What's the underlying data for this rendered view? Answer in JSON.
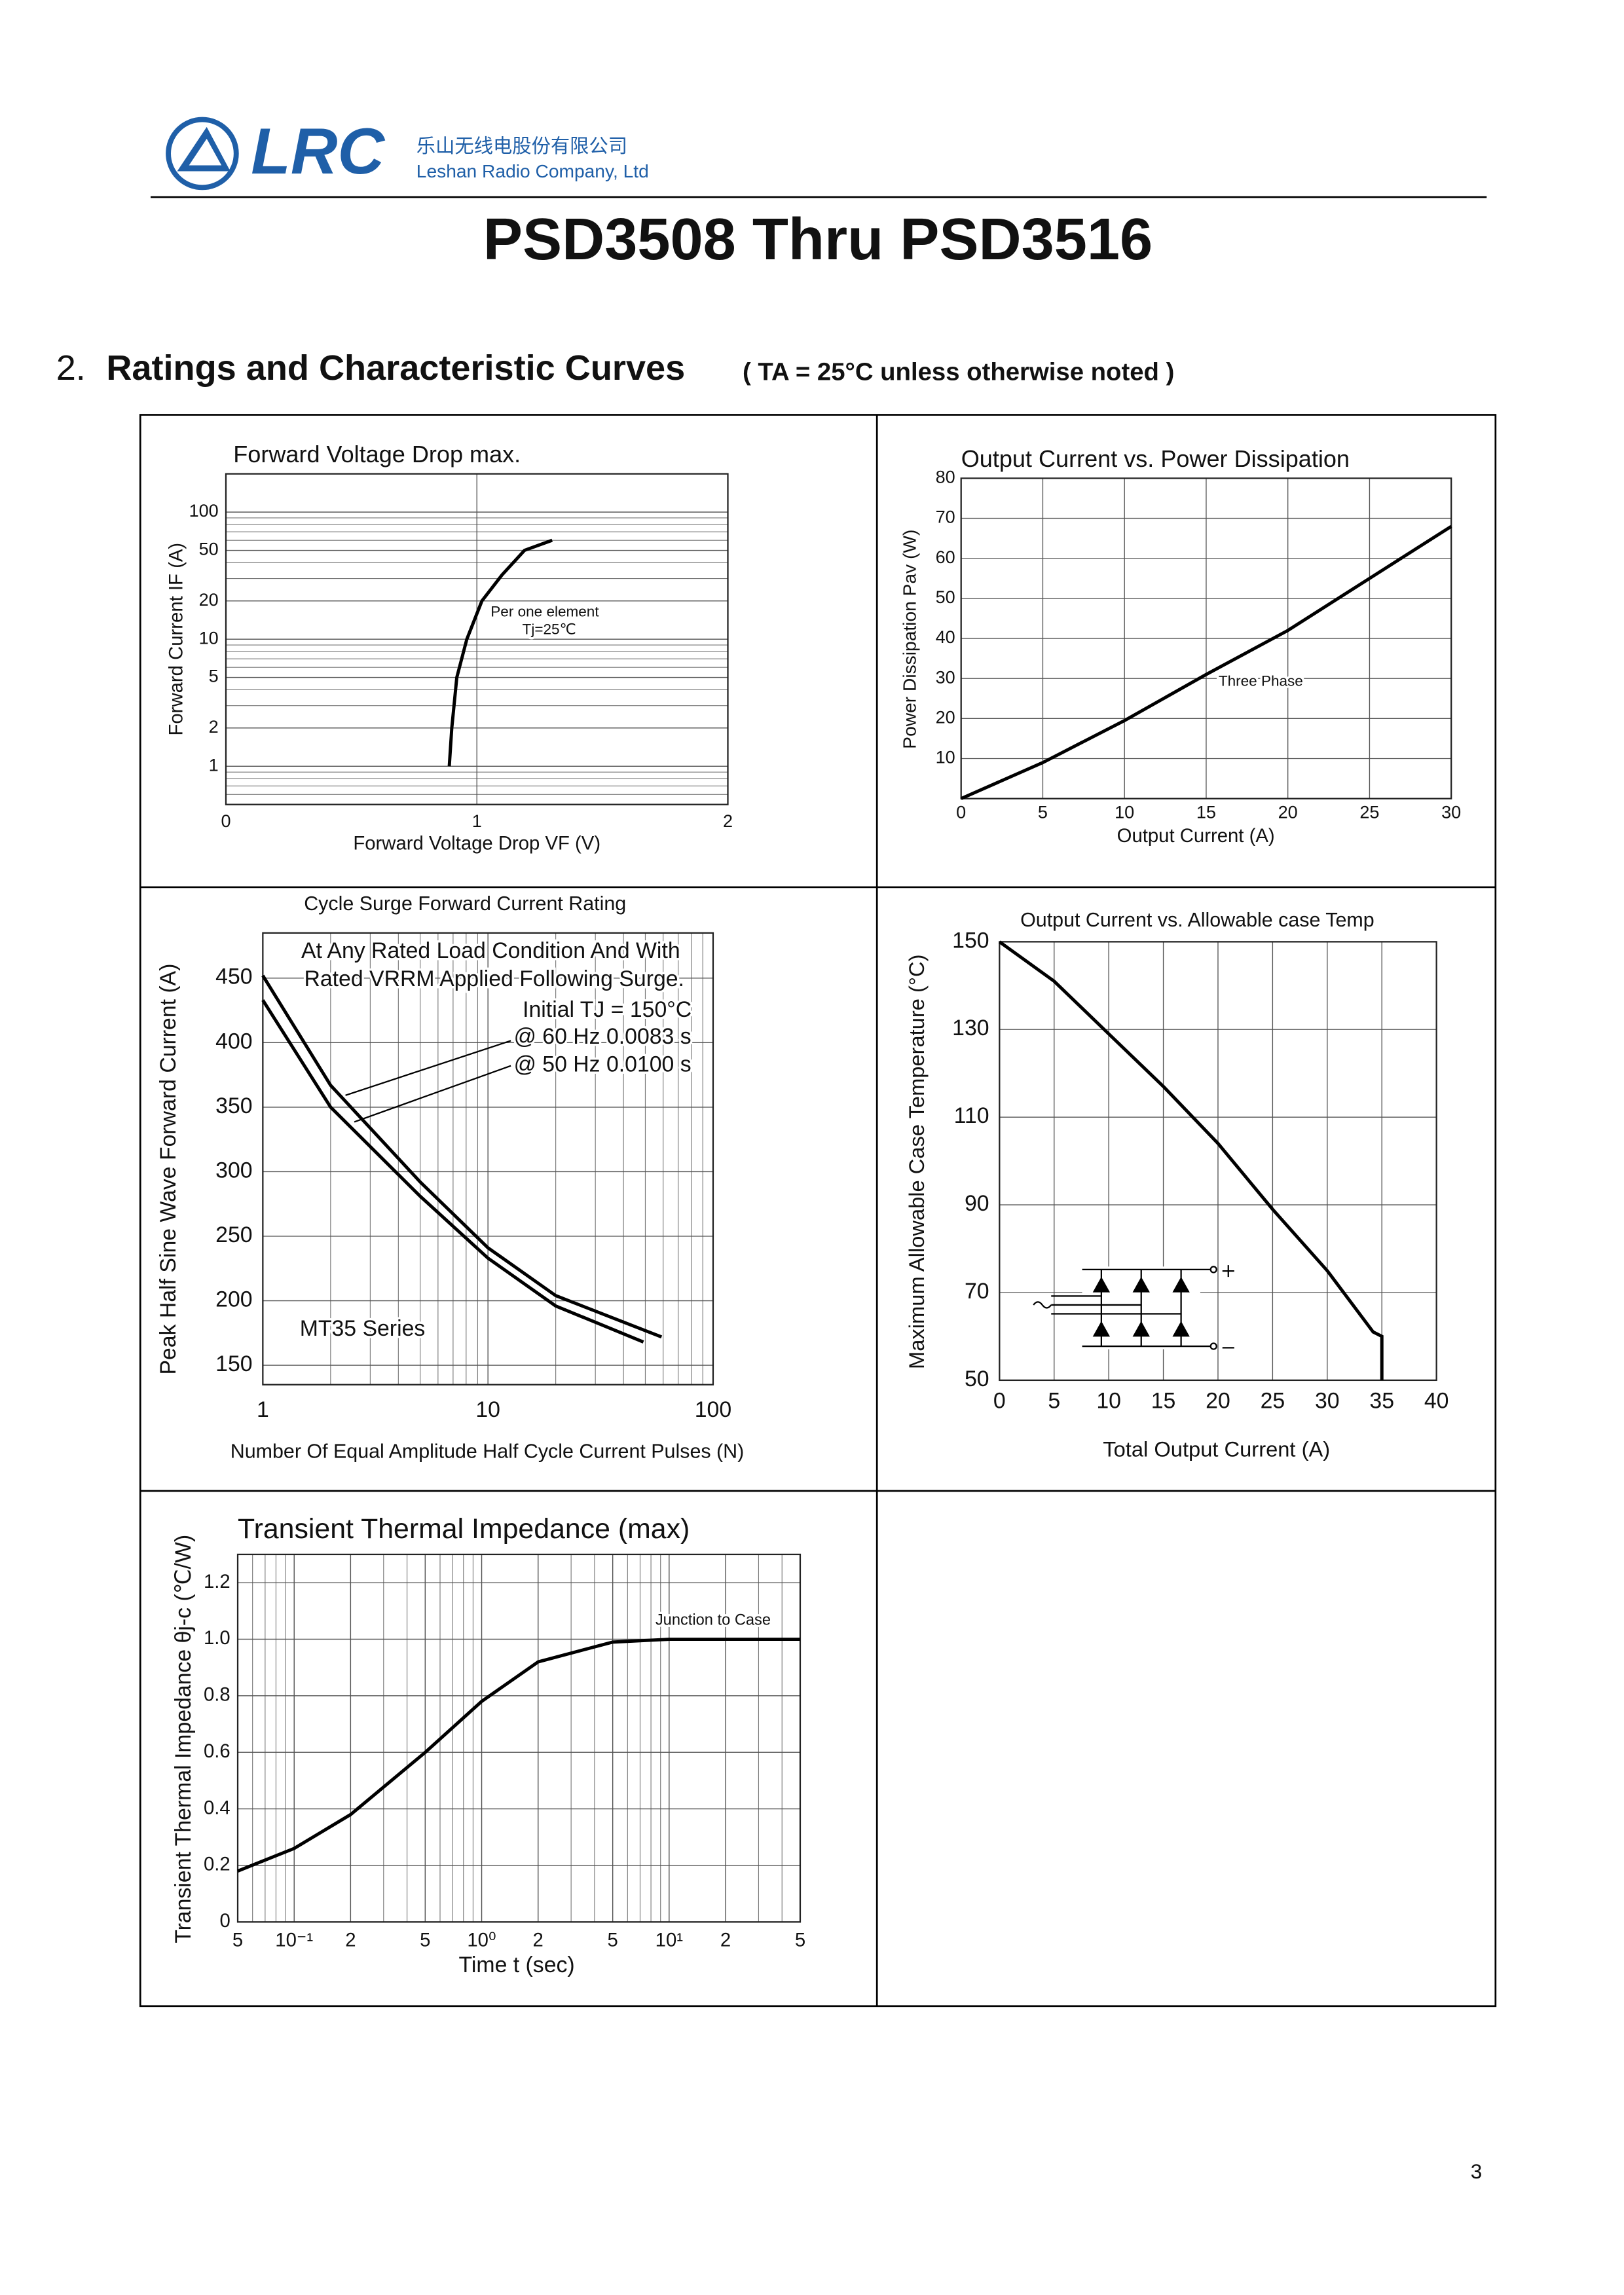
{
  "header": {
    "logo_text": "LRC",
    "company_cn": "乐山无线电股份有限公司",
    "company_en": "Leshan Radio Company, Ltd"
  },
  "title": "PSD3508 Thru PSD3516",
  "section": {
    "number": "2.",
    "heading": "Ratings and Characteristic Curves",
    "note": "( TA = 25°C unless otherwise noted )"
  },
  "page_number": "3",
  "chart_data": [
    {
      "type": "line",
      "title": "Forward Voltage Drop max.",
      "x_label": "Forward Voltage Drop VF (V)",
      "y_label": "Forward Current  IF (A)",
      "xlim": [
        0,
        2
      ],
      "xticks": [
        0,
        1,
        2
      ],
      "ylim": [
        0.5,
        200
      ],
      "yticks": [
        1,
        2,
        5,
        10,
        20,
        50,
        100
      ],
      "yscale": "log",
      "grid": true,
      "annotations": [
        "Per one element",
        "Tj=25℃"
      ],
      "series": [
        {
          "color": "#000000",
          "x": [
            0.89,
            0.9,
            0.92,
            0.96,
            1.02,
            1.1,
            1.19,
            1.3
          ],
          "values": [
            1,
            2,
            5,
            10,
            20,
            32,
            50,
            60
          ]
        }
      ]
    },
    {
      "type": "line",
      "title": "Output Current vs. Power Dissipation",
      "x_label": "Output Current (A)",
      "y_label": "Power Dissipation Pav (W)",
      "xlim": [
        0,
        30
      ],
      "xticks": [
        0,
        5,
        10,
        15,
        20,
        25,
        30
      ],
      "ylim": [
        0,
        80
      ],
      "yticks": [
        10,
        20,
        30,
        40,
        50,
        60,
        70,
        80
      ],
      "grid": true,
      "annotations": [
        "Three Phase"
      ],
      "series": [
        {
          "color": "#000000",
          "x": [
            0,
            5,
            10,
            15,
            20,
            25,
            30
          ],
          "values": [
            0,
            9,
            19.5,
            31,
            42,
            55,
            68
          ]
        }
      ]
    },
    {
      "type": "line",
      "title": "Cycle Surge Forward Current Rating",
      "x_label": "Number Of Equal Amplitude Half Cycle Current Pulses (N)",
      "y_label": "Peak Half Sine Wave Forward Current (A)",
      "xlim": [
        1,
        100
      ],
      "xticks": [
        1,
        10,
        100
      ],
      "xscale": "log",
      "ylim": [
        135,
        485
      ],
      "yticks": [
        150,
        200,
        250,
        300,
        350,
        400,
        450
      ],
      "grid": true,
      "annotations": [
        "At Any Rated Load Condition And With",
        "Rated VRRM Applied Following Surge.",
        "Initial TJ = 150°C",
        "@ 60 Hz 0.0083 s",
        "@ 50 Hz 0.0100 s",
        "MT35 Series"
      ],
      "series": [
        {
          "name": "@ 60 Hz",
          "color": "#000000",
          "x": [
            1,
            2,
            5,
            10,
            20,
            59
          ],
          "values": [
            452,
            367,
            292,
            241,
            204,
            172
          ]
        },
        {
          "name": "@ 50 Hz",
          "color": "#000000",
          "x": [
            1,
            2,
            5,
            10,
            20,
            49
          ],
          "values": [
            433,
            350,
            281,
            233,
            196,
            168
          ]
        }
      ]
    },
    {
      "type": "line",
      "title": "Output Current vs. Allowable case Temp",
      "x_label": "Total Output Current (A)",
      "y_label": "Maximum Allowable Case Temperature (°C)",
      "xlim": [
        0,
        40
      ],
      "xticks": [
        0,
        5,
        10,
        15,
        20,
        25,
        30,
        35,
        40
      ],
      "ylim": [
        50,
        150
      ],
      "yticks": [
        50,
        70,
        90,
        110,
        130,
        150
      ],
      "grid": true,
      "series": [
        {
          "color": "#000000",
          "x": [
            0,
            5,
            10,
            15,
            20,
            25,
            30,
            34.2,
            35,
            35
          ],
          "values": [
            150,
            141,
            129,
            117,
            104,
            89,
            75,
            61,
            60,
            50
          ]
        }
      ]
    },
    {
      "type": "line",
      "title": "Transient Thermal Impedance (max)",
      "x_label": "Time t (sec)",
      "y_label": "Transient Thermal Impedance θj-c (℃/W)",
      "xlim": [
        0.05,
        50
      ],
      "xscale": "log",
      "xticks": [
        {
          "value": 0.05,
          "label": "5"
        },
        {
          "value": 0.1,
          "label": "10⁻¹"
        },
        {
          "value": 0.2,
          "label": "2"
        },
        {
          "value": 0.5,
          "label": "5"
        },
        {
          "value": 1,
          "label": "10⁰"
        },
        {
          "value": 2,
          "label": "2"
        },
        {
          "value": 5,
          "label": "5"
        },
        {
          "value": 10,
          "label": "10¹"
        },
        {
          "value": 20,
          "label": "2"
        },
        {
          "value": 50,
          "label": "5"
        }
      ],
      "ylim": [
        0,
        1.3
      ],
      "yticks": [
        0,
        0.2,
        0.4,
        0.6,
        0.8,
        {
          "value": 1,
          "label": "1.0"
        },
        1.2
      ],
      "grid": true,
      "annotations": [
        "Junction to Case"
      ],
      "series": [
        {
          "color": "#000000",
          "x": [
            0.05,
            0.1,
            0.2,
            0.5,
            1,
            2,
            5,
            10,
            20,
            50
          ],
          "values": [
            0.18,
            0.26,
            0.38,
            0.6,
            0.78,
            0.92,
            0.99,
            1.0,
            1.0,
            1.0
          ]
        }
      ]
    }
  ]
}
